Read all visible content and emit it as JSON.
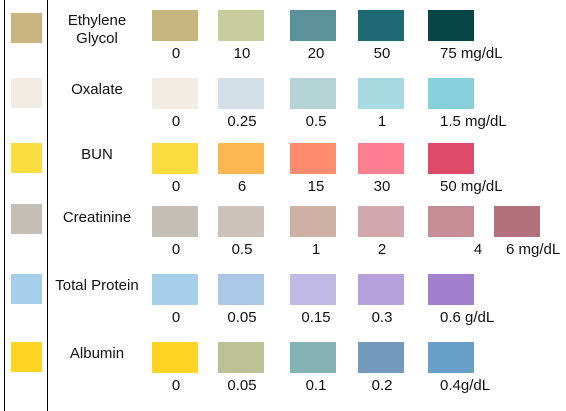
{
  "colors": {
    "strip_border": "#000000",
    "background": "#ffffff"
  },
  "rows": [
    {
      "name": "ethylene-glycol",
      "label": "Ethylene\nGlycol",
      "strip_color": "#c8b47e",
      "pads": [
        {
          "color": "#c8b47e",
          "value": "0"
        },
        {
          "color": "#c9cd9e",
          "value": "10"
        },
        {
          "color": "#5b919b",
          "value": "20"
        },
        {
          "color": "#1d6a74",
          "value": "50"
        },
        {
          "color": "#084547",
          "value": "75 mg/dL"
        }
      ]
    },
    {
      "name": "oxalate",
      "label": "Oxalate",
      "strip_color": "#f3ece4",
      "pads": [
        {
          "color": "#f3ece4",
          "value": "0"
        },
        {
          "color": "#d2dfe6",
          "value": "0.25"
        },
        {
          "color": "#b5d4d6",
          "value": "0.5"
        },
        {
          "color": "#a7dae3",
          "value": "1"
        },
        {
          "color": "#86cfdb",
          "value": "1.5 mg/dL"
        }
      ]
    },
    {
      "name": "bun",
      "label": "BUN",
      "strip_color": "#fbdd3f",
      "pads": [
        {
          "color": "#fbdd3f",
          "value": "0"
        },
        {
          "color": "#fdb652",
          "value": "6"
        },
        {
          "color": "#ff8c6e",
          "value": "15"
        },
        {
          "color": "#ff7f90",
          "value": "30"
        },
        {
          "color": "#de4c69",
          "value": "50 mg/dL"
        }
      ]
    },
    {
      "name": "creatinine",
      "label": "Creatinine",
      "strip_color": "#c4beb4",
      "pads": [
        {
          "color": "#c4beb4",
          "value": "0"
        },
        {
          "color": "#cdc2bc",
          "value": "0.5"
        },
        {
          "color": "#cfb0a5",
          "value": "1"
        },
        {
          "color": "#d1a8ae",
          "value": "2"
        },
        {
          "color": "#c68d96",
          "value": "4"
        },
        {
          "color": "#b2717b",
          "value": "6 mg/dL"
        }
      ]
    },
    {
      "name": "total-protein",
      "label": "Total Protein",
      "strip_color": "#a5cfea",
      "pads": [
        {
          "color": "#a5cfea",
          "value": "0"
        },
        {
          "color": "#abc8e6",
          "value": "0.05"
        },
        {
          "color": "#c0b9e4",
          "value": "0.15"
        },
        {
          "color": "#b5a1db",
          "value": "0.3"
        },
        {
          "color": "#a27fcc",
          "value": "0.6 g/dL"
        }
      ]
    },
    {
      "name": "albumin",
      "label": "Albumin",
      "strip_color": "#ffd422",
      "pads": [
        {
          "color": "#ffd422",
          "value": "0"
        },
        {
          "color": "#bcc296",
          "value": "0.05"
        },
        {
          "color": "#83b1b4",
          "value": "0.1"
        },
        {
          "color": "#7399bd",
          "value": "0.2"
        },
        {
          "color": "#66a0c8",
          "value": "0.4g/dL"
        }
      ]
    }
  ]
}
